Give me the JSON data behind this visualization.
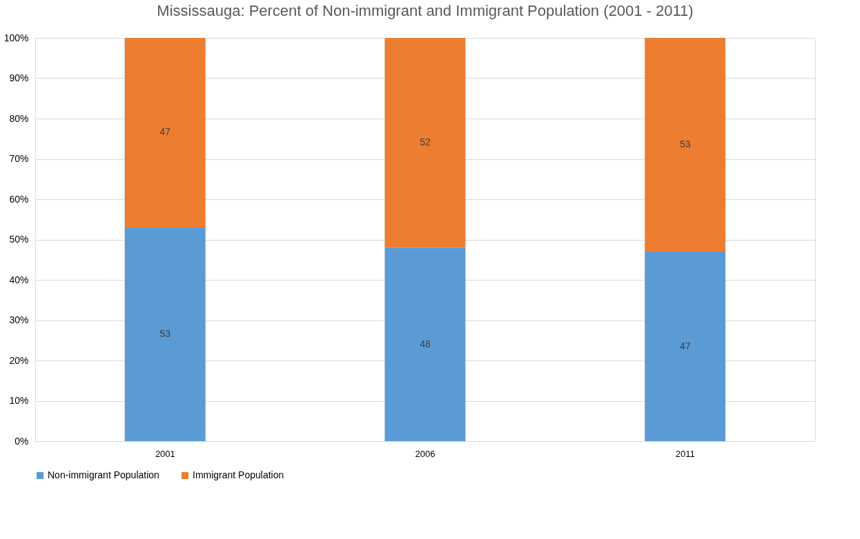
{
  "chart_data": {
    "type": "bar",
    "title": "Mississauga: Percent of Non-immigrant and Immigrant Population (2001 - 2011)",
    "categories": [
      "2001",
      "2006",
      "2011"
    ],
    "series": [
      {
        "name": "Non-immigrant Population",
        "color": "#5b9bd5",
        "values": [
          53,
          48,
          47
        ]
      },
      {
        "name": "Immigrant Population",
        "color": "#ed7d31",
        "values": [
          47,
          52,
          53
        ]
      }
    ],
    "stacked": true,
    "data_labels": true,
    "ylim": [
      0,
      100
    ],
    "yticks": [
      {
        "value": 0,
        "label": "0%"
      },
      {
        "value": 10,
        "label": "10%"
      },
      {
        "value": 20,
        "label": "20%"
      },
      {
        "value": 30,
        "label": "30%"
      },
      {
        "value": 40,
        "label": "40%"
      },
      {
        "value": 50,
        "label": "50%"
      },
      {
        "value": 60,
        "label": "60%"
      },
      {
        "value": 70,
        "label": "70%"
      },
      {
        "value": 80,
        "label": "80%"
      },
      {
        "value": 90,
        "label": "90%"
      },
      {
        "value": 100,
        "label": "100%"
      }
    ],
    "grid": true,
    "legend": "bottom"
  }
}
